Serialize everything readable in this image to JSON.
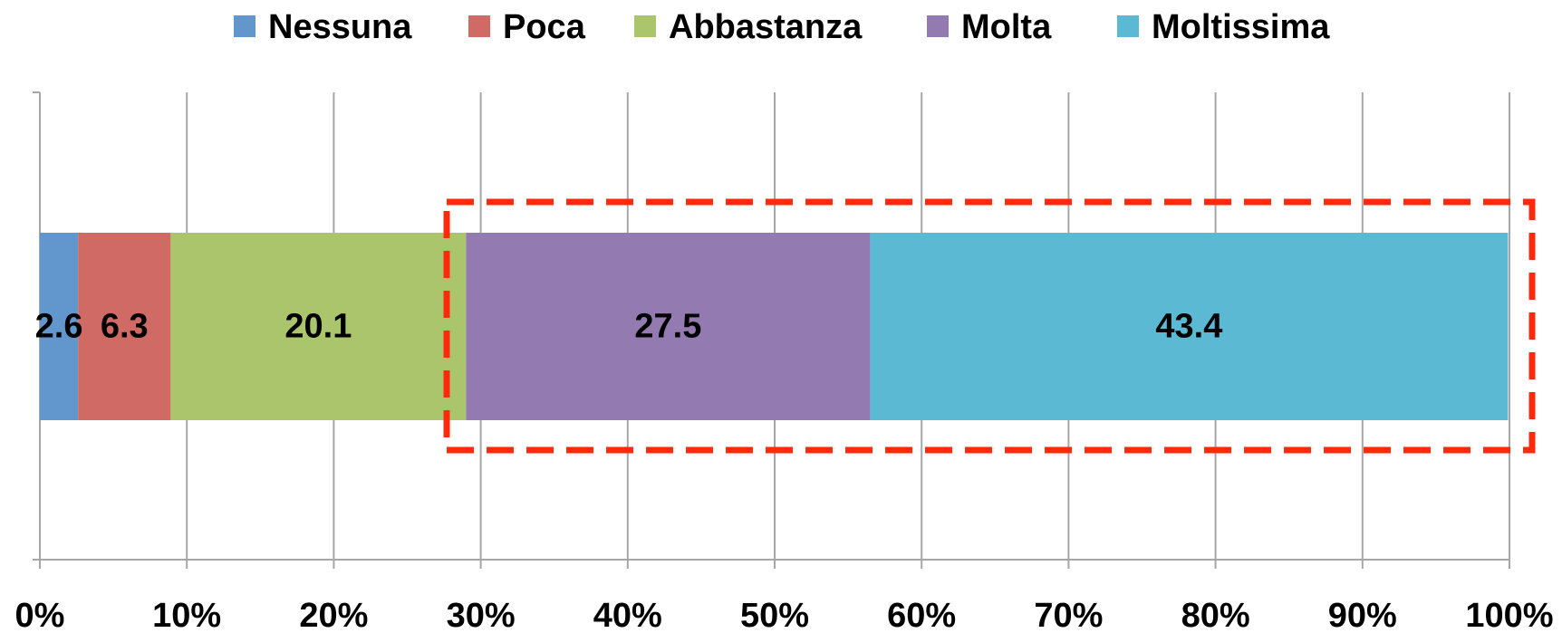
{
  "chart_data": {
    "type": "bar",
    "orientation": "horizontal",
    "stacked": true,
    "categories": [
      null
    ],
    "series": [
      {
        "name": "Nessuna",
        "color": "#6297cd",
        "values": [
          2.6
        ]
      },
      {
        "name": "Poca",
        "color": "#cf6a64",
        "values": [
          6.3
        ]
      },
      {
        "name": "Abbastanza",
        "color": "#abc56c",
        "values": [
          20.1
        ]
      },
      {
        "name": "Molta",
        "color": "#937bb2",
        "values": [
          27.5
        ]
      },
      {
        "name": "Moltissima",
        "color": "#5cb9d3",
        "values": [
          43.4
        ]
      }
    ],
    "xlim": [
      0,
      100
    ],
    "xticks": [
      {
        "value": 0,
        "label": "0%"
      },
      {
        "value": 10,
        "label": "10%"
      },
      {
        "value": 20,
        "label": "20%"
      },
      {
        "value": 30,
        "label": "30%"
      },
      {
        "value": 40,
        "label": "40%"
      },
      {
        "value": 50,
        "label": "50%"
      },
      {
        "value": 60,
        "label": "60%"
      },
      {
        "value": 70,
        "label": "70%"
      },
      {
        "value": 80,
        "label": "80%"
      },
      {
        "value": 90,
        "label": "90%"
      },
      {
        "value": 100,
        "label": "100%"
      }
    ],
    "grid": true,
    "legend": "top"
  }
}
